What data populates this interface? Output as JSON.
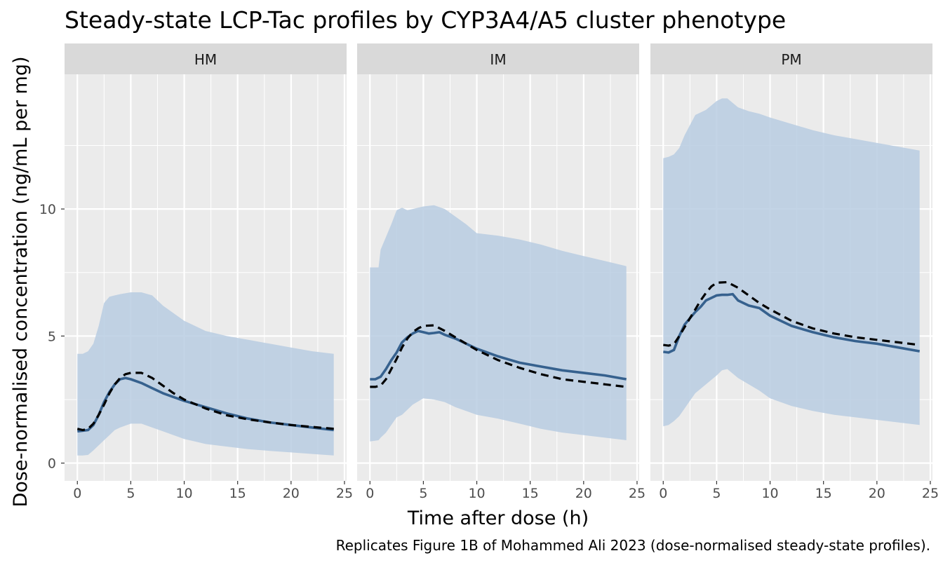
{
  "chart_data": {
    "type": "line",
    "title": "Steady-state LCP-Tac profiles by CYP3A4/A5 cluster phenotype",
    "xlabel": "Time after dose (h)",
    "ylabel": "Dose-normalised concentration (ng/mL per mg)",
    "caption": "Replicates Figure 1B of Mohammed Ali 2023 (dose-normalised steady-state profiles).",
    "xlim": [
      -1.2,
      25.2
    ],
    "ylim": [
      -0.7,
      15.3
    ],
    "x_ticks": [
      0,
      5,
      10,
      15,
      20,
      25
    ],
    "y_ticks": [
      0,
      5,
      10
    ],
    "grid": true,
    "legend": "none",
    "colors": {
      "band": "#b9cde2",
      "solid_line": "#36618e",
      "dashed_line": "#000000",
      "panel_bg": "#ebebeb",
      "strip_bg": "#d9d9d9",
      "grid": "#ffffff"
    },
    "panels": [
      {
        "name": "HM",
        "band": [
          [
            0,
            0.3,
            4.3
          ],
          [
            0.5,
            0.3,
            4.3
          ],
          [
            1,
            0.32,
            4.4
          ],
          [
            1.5,
            0.5,
            4.7
          ],
          [
            2,
            0.7,
            5.4
          ],
          [
            2.5,
            0.9,
            6.3
          ],
          [
            3,
            1.1,
            6.55
          ],
          [
            3.5,
            1.3,
            6.6
          ],
          [
            4,
            1.4,
            6.65
          ],
          [
            5,
            1.55,
            6.72
          ],
          [
            6,
            1.55,
            6.72
          ],
          [
            7,
            1.4,
            6.6
          ],
          [
            8,
            1.25,
            6.2
          ],
          [
            9,
            1.1,
            5.9
          ],
          [
            10,
            0.95,
            5.6
          ],
          [
            11,
            0.85,
            5.4
          ],
          [
            12,
            0.75,
            5.2
          ],
          [
            14,
            0.65,
            5.0
          ],
          [
            16,
            0.55,
            4.85
          ],
          [
            18,
            0.48,
            4.7
          ],
          [
            20,
            0.42,
            4.55
          ],
          [
            22,
            0.36,
            4.4
          ],
          [
            24,
            0.3,
            4.3
          ]
        ],
        "solid": [
          [
            0,
            1.25
          ],
          [
            1,
            1.3
          ],
          [
            1.5,
            1.5
          ],
          [
            2,
            1.9
          ],
          [
            2.5,
            2.4
          ],
          [
            3,
            2.8
          ],
          [
            3.5,
            3.1
          ],
          [
            4,
            3.3
          ],
          [
            4.5,
            3.35
          ],
          [
            5,
            3.3
          ],
          [
            6,
            3.15
          ],
          [
            7,
            2.95
          ],
          [
            8,
            2.75
          ],
          [
            9,
            2.6
          ],
          [
            10,
            2.45
          ],
          [
            12,
            2.2
          ],
          [
            14,
            1.95
          ],
          [
            16,
            1.75
          ],
          [
            18,
            1.6
          ],
          [
            20,
            1.5
          ],
          [
            22,
            1.4
          ],
          [
            24,
            1.3
          ]
        ],
        "dashed": [
          [
            0,
            1.35
          ],
          [
            0.5,
            1.3
          ],
          [
            1,
            1.35
          ],
          [
            1.5,
            1.55
          ],
          [
            2,
            1.9
          ],
          [
            2.5,
            2.3
          ],
          [
            3,
            2.75
          ],
          [
            3.5,
            3.1
          ],
          [
            4,
            3.35
          ],
          [
            4.5,
            3.5
          ],
          [
            5,
            3.55
          ],
          [
            6,
            3.55
          ],
          [
            7,
            3.35
          ],
          [
            8,
            3.05
          ],
          [
            9,
            2.75
          ],
          [
            10,
            2.5
          ],
          [
            12,
            2.15
          ],
          [
            14,
            1.88
          ],
          [
            16,
            1.72
          ],
          [
            18,
            1.6
          ],
          [
            20,
            1.5
          ],
          [
            22,
            1.42
          ],
          [
            24,
            1.35
          ]
        ]
      },
      {
        "name": "IM",
        "band": [
          [
            0,
            0.85,
            7.7
          ],
          [
            0.8,
            0.9,
            7.7
          ],
          [
            1,
            1.0,
            8.4
          ],
          [
            1.5,
            1.2,
            8.9
          ],
          [
            2,
            1.5,
            9.4
          ],
          [
            2.5,
            1.8,
            9.95
          ],
          [
            3,
            1.9,
            10.05
          ],
          [
            3.5,
            2.1,
            9.95
          ],
          [
            4,
            2.3,
            10.0
          ],
          [
            5,
            2.55,
            10.1
          ],
          [
            6,
            2.5,
            10.15
          ],
          [
            7,
            2.4,
            10.0
          ],
          [
            8,
            2.2,
            9.7
          ],
          [
            9,
            2.05,
            9.4
          ],
          [
            10,
            1.9,
            9.05
          ],
          [
            12,
            1.75,
            8.95
          ],
          [
            14,
            1.55,
            8.8
          ],
          [
            16,
            1.35,
            8.6
          ],
          [
            18,
            1.2,
            8.35
          ],
          [
            20,
            1.1,
            8.15
          ],
          [
            22,
            1.0,
            7.95
          ],
          [
            24,
            0.9,
            7.75
          ]
        ],
        "solid": [
          [
            0,
            3.3
          ],
          [
            0.5,
            3.3
          ],
          [
            1,
            3.4
          ],
          [
            1.5,
            3.7
          ],
          [
            2,
            4.05
          ],
          [
            2.5,
            4.35
          ],
          [
            3,
            4.75
          ],
          [
            3.5,
            4.95
          ],
          [
            4,
            5.1
          ],
          [
            4.5,
            5.2
          ],
          [
            5,
            5.15
          ],
          [
            5.5,
            5.1
          ],
          [
            6,
            5.12
          ],
          [
            6.5,
            5.15
          ],
          [
            7,
            5.05
          ],
          [
            8,
            4.9
          ],
          [
            9,
            4.7
          ],
          [
            10,
            4.5
          ],
          [
            12,
            4.2
          ],
          [
            14,
            3.95
          ],
          [
            16,
            3.8
          ],
          [
            18,
            3.65
          ],
          [
            20,
            3.55
          ],
          [
            22,
            3.45
          ],
          [
            24,
            3.3
          ]
        ],
        "dashed": [
          [
            0,
            3.0
          ],
          [
            0.5,
            3.0
          ],
          [
            1,
            3.05
          ],
          [
            1.5,
            3.3
          ],
          [
            2,
            3.7
          ],
          [
            2.5,
            4.1
          ],
          [
            3,
            4.55
          ],
          [
            3.5,
            4.9
          ],
          [
            4,
            5.15
          ],
          [
            4.5,
            5.3
          ],
          [
            5,
            5.4
          ],
          [
            6,
            5.42
          ],
          [
            7,
            5.2
          ],
          [
            8,
            4.95
          ],
          [
            9,
            4.7
          ],
          [
            10,
            4.45
          ],
          [
            12,
            4.05
          ],
          [
            14,
            3.75
          ],
          [
            16,
            3.5
          ],
          [
            18,
            3.3
          ],
          [
            20,
            3.2
          ],
          [
            22,
            3.1
          ],
          [
            24,
            3.0
          ]
        ]
      },
      {
        "name": "PM",
        "band": [
          [
            0,
            1.45,
            12.0
          ],
          [
            0.5,
            1.5,
            12.05
          ],
          [
            1,
            1.65,
            12.15
          ],
          [
            1.5,
            1.85,
            12.4
          ],
          [
            2,
            2.15,
            12.9
          ],
          [
            2.5,
            2.45,
            13.3
          ],
          [
            3,
            2.75,
            13.7
          ],
          [
            4,
            3.1,
            13.9
          ],
          [
            5,
            3.45,
            14.25
          ],
          [
            5.5,
            3.65,
            14.35
          ],
          [
            6,
            3.7,
            14.35
          ],
          [
            7,
            3.35,
            14.0
          ],
          [
            8,
            3.1,
            13.85
          ],
          [
            9,
            2.85,
            13.75
          ],
          [
            10,
            2.55,
            13.6
          ],
          [
            12,
            2.25,
            13.35
          ],
          [
            14,
            2.05,
            13.1
          ],
          [
            16,
            1.9,
            12.9
          ],
          [
            18,
            1.8,
            12.75
          ],
          [
            20,
            1.7,
            12.6
          ],
          [
            22,
            1.6,
            12.45
          ],
          [
            24,
            1.5,
            12.3
          ]
        ],
        "solid": [
          [
            0,
            4.38
          ],
          [
            0.5,
            4.35
          ],
          [
            1,
            4.45
          ],
          [
            1.5,
            5.0
          ],
          [
            2,
            5.45
          ],
          [
            2.5,
            5.7
          ],
          [
            3,
            5.95
          ],
          [
            3.5,
            6.15
          ],
          [
            4,
            6.4
          ],
          [
            5,
            6.6
          ],
          [
            5.5,
            6.62
          ],
          [
            6,
            6.62
          ],
          [
            6.5,
            6.65
          ],
          [
            7,
            6.4
          ],
          [
            8,
            6.2
          ],
          [
            9,
            6.1
          ],
          [
            10,
            5.8
          ],
          [
            12,
            5.4
          ],
          [
            14,
            5.15
          ],
          [
            16,
            4.95
          ],
          [
            18,
            4.8
          ],
          [
            20,
            4.7
          ],
          [
            22,
            4.55
          ],
          [
            24,
            4.4
          ]
        ],
        "dashed": [
          [
            0,
            4.65
          ],
          [
            0.5,
            4.62
          ],
          [
            1,
            4.68
          ],
          [
            1.5,
            5.0
          ],
          [
            2,
            5.35
          ],
          [
            2.5,
            5.7
          ],
          [
            3,
            6.05
          ],
          [
            3.5,
            6.4
          ],
          [
            4,
            6.7
          ],
          [
            4.5,
            6.95
          ],
          [
            5,
            7.1
          ],
          [
            6,
            7.12
          ],
          [
            7,
            6.9
          ],
          [
            8,
            6.6
          ],
          [
            9,
            6.3
          ],
          [
            10,
            6.05
          ],
          [
            12,
            5.6
          ],
          [
            14,
            5.3
          ],
          [
            16,
            5.1
          ],
          [
            18,
            4.95
          ],
          [
            20,
            4.85
          ],
          [
            22,
            4.75
          ],
          [
            24,
            4.65
          ]
        ]
      }
    ]
  }
}
